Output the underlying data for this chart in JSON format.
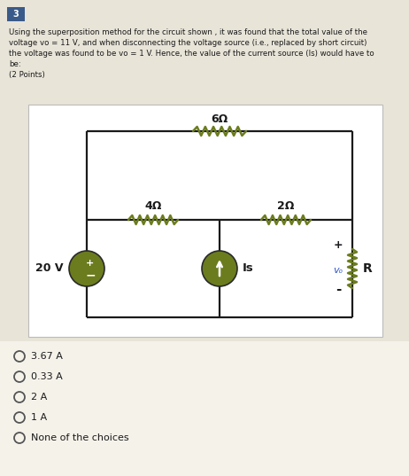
{
  "bg_color": "#e8e4d8",
  "white": "#ffffff",
  "question_number": "3",
  "question_bg": "#3a5a8a",
  "question_text_line1": "Using the superposition method for the circuit shown , it was found that the total value of the",
  "question_text_line2": "voltage vo = 11 V, and when disconnecting the voltage source (i.e., replaced by short circuit)",
  "question_text_line3": "the voltage was found to be vo = 1 V. Hence, the value of the current source (Is) would have to",
  "question_text_line4": "be:",
  "question_text_line5": "(2 Points)",
  "choices": [
    "3.67 A",
    "0.33 A",
    "2 A",
    "1 A",
    "None of the choices"
  ],
  "circuit_bg": "#ffffff",
  "olive_color": "#6b7c1e",
  "wire_color": "#1a1a1a",
  "label_6ohm": "6Ω",
  "label_4ohm": "4Ω",
  "label_2ohm": "2Ω",
  "label_20v": "20 V",
  "label_Is": "Is",
  "label_R": "R",
  "label_vo": "vo",
  "text_color": "#1a1a1a",
  "choice_bg": "#f5f2ea"
}
